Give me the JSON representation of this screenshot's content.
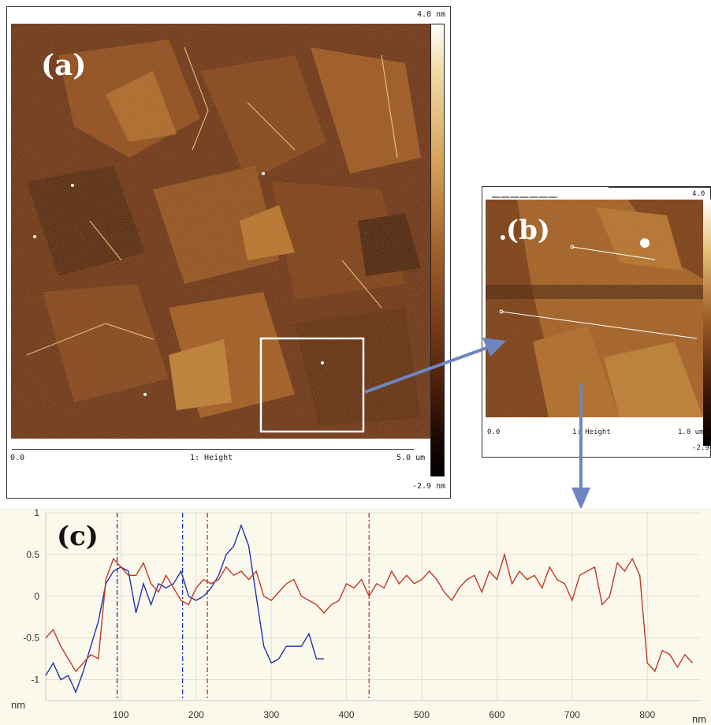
{
  "panel_a": {
    "label": "(a)",
    "scale_max": "4.0 nm",
    "scale_min": "-2.9 nm",
    "axis_start": "0.0",
    "axis_title": "1: Height",
    "axis_end": "5.0 um"
  },
  "panel_b": {
    "label": "(b)",
    "scale_max": "4.0",
    "scale_min": "-2.9",
    "axis_start": "0.0",
    "axis_title": "1: Height",
    "axis_end": "1.0 um"
  },
  "panel_c": {
    "label": "(c)",
    "y_unit": "nm",
    "x_unit": "nm"
  },
  "colors": {
    "afm_dark": "#3a1508",
    "afm_mid": "#8a4a1c",
    "afm_light": "#e8c070",
    "arrow": "#6d86c0",
    "profile_blue": "#2233aa",
    "profile_red": "#c0392b",
    "chart_bg": "#fbf8ec"
  },
  "chart_data": {
    "type": "line",
    "xlim": [
      0,
      870
    ],
    "ylim": [
      -1.25,
      1
    ],
    "x_ticks": [
      100,
      200,
      300,
      400,
      500,
      600,
      700,
      800
    ],
    "y_ticks": [
      1,
      0.5,
      0,
      -0.5,
      -1
    ],
    "grid": true,
    "markers": [
      {
        "x": 95,
        "color": "blue"
      },
      {
        "x": 182,
        "color": "blue"
      },
      {
        "x": 215,
        "color": "red"
      },
      {
        "x": 430,
        "color": "red"
      }
    ],
    "series": [
      {
        "color": "blue",
        "x": [
          0,
          10,
          20,
          30,
          40,
          50,
          60,
          70,
          80,
          90,
          100,
          110,
          120,
          130,
          140,
          150,
          160,
          170,
          180,
          190,
          200,
          210,
          220,
          230,
          240,
          250,
          260,
          270,
          280,
          290,
          300,
          310,
          320,
          330,
          340,
          350,
          360,
          370
        ],
        "y": [
          -0.95,
          -0.8,
          -1.0,
          -0.95,
          -1.15,
          -0.9,
          -0.6,
          -0.3,
          0.15,
          0.3,
          0.35,
          0.3,
          -0.2,
          0.15,
          -0.1,
          0.15,
          0.1,
          0.15,
          0.3,
          0.0,
          -0.05,
          0.0,
          0.1,
          0.25,
          0.5,
          0.6,
          0.85,
          0.6,
          0.0,
          -0.6,
          -0.8,
          -0.75,
          -0.6,
          -0.6,
          -0.6,
          -0.45,
          -0.75,
          -0.75
        ]
      },
      {
        "color": "red",
        "x": [
          0,
          10,
          20,
          30,
          40,
          50,
          60,
          70,
          80,
          90,
          100,
          110,
          120,
          130,
          140,
          150,
          160,
          170,
          180,
          190,
          200,
          210,
          220,
          230,
          240,
          250,
          260,
          270,
          280,
          290,
          300,
          310,
          320,
          330,
          340,
          350,
          360,
          370,
          380,
          390,
          400,
          410,
          420,
          430,
          440,
          450,
          460,
          470,
          480,
          490,
          500,
          510,
          520,
          530,
          540,
          550,
          560,
          570,
          580,
          590,
          600,
          610,
          620,
          630,
          640,
          650,
          660,
          670,
          680,
          690,
          700,
          710,
          720,
          730,
          740,
          750,
          760,
          770,
          780,
          790,
          800,
          810,
          820,
          830,
          840,
          850,
          860
        ],
        "y": [
          -0.5,
          -0.4,
          -0.6,
          -0.75,
          -0.9,
          -0.8,
          -0.7,
          -0.75,
          0.2,
          0.45,
          0.35,
          0.25,
          0.25,
          0.4,
          0.15,
          0.05,
          0.25,
          0.1,
          -0.05,
          -0.1,
          0.1,
          0.2,
          0.15,
          0.2,
          0.35,
          0.25,
          0.3,
          0.2,
          0.3,
          0.0,
          -0.05,
          0.05,
          0.15,
          0.2,
          0.0,
          -0.05,
          -0.1,
          -0.2,
          -0.1,
          -0.05,
          0.15,
          0.1,
          0.2,
          0.0,
          0.15,
          0.1,
          0.3,
          0.15,
          0.25,
          0.15,
          0.2,
          0.3,
          0.2,
          0.05,
          -0.05,
          0.1,
          0.2,
          0.25,
          0.05,
          0.3,
          0.2,
          0.5,
          0.15,
          0.3,
          0.2,
          0.25,
          0.1,
          0.35,
          0.2,
          0.15,
          -0.05,
          0.25,
          0.3,
          0.35,
          -0.1,
          0.0,
          0.4,
          0.3,
          0.45,
          0.25,
          -0.8,
          -0.9,
          -0.65,
          -0.7,
          -0.85,
          -0.7,
          -0.8
        ]
      }
    ]
  }
}
